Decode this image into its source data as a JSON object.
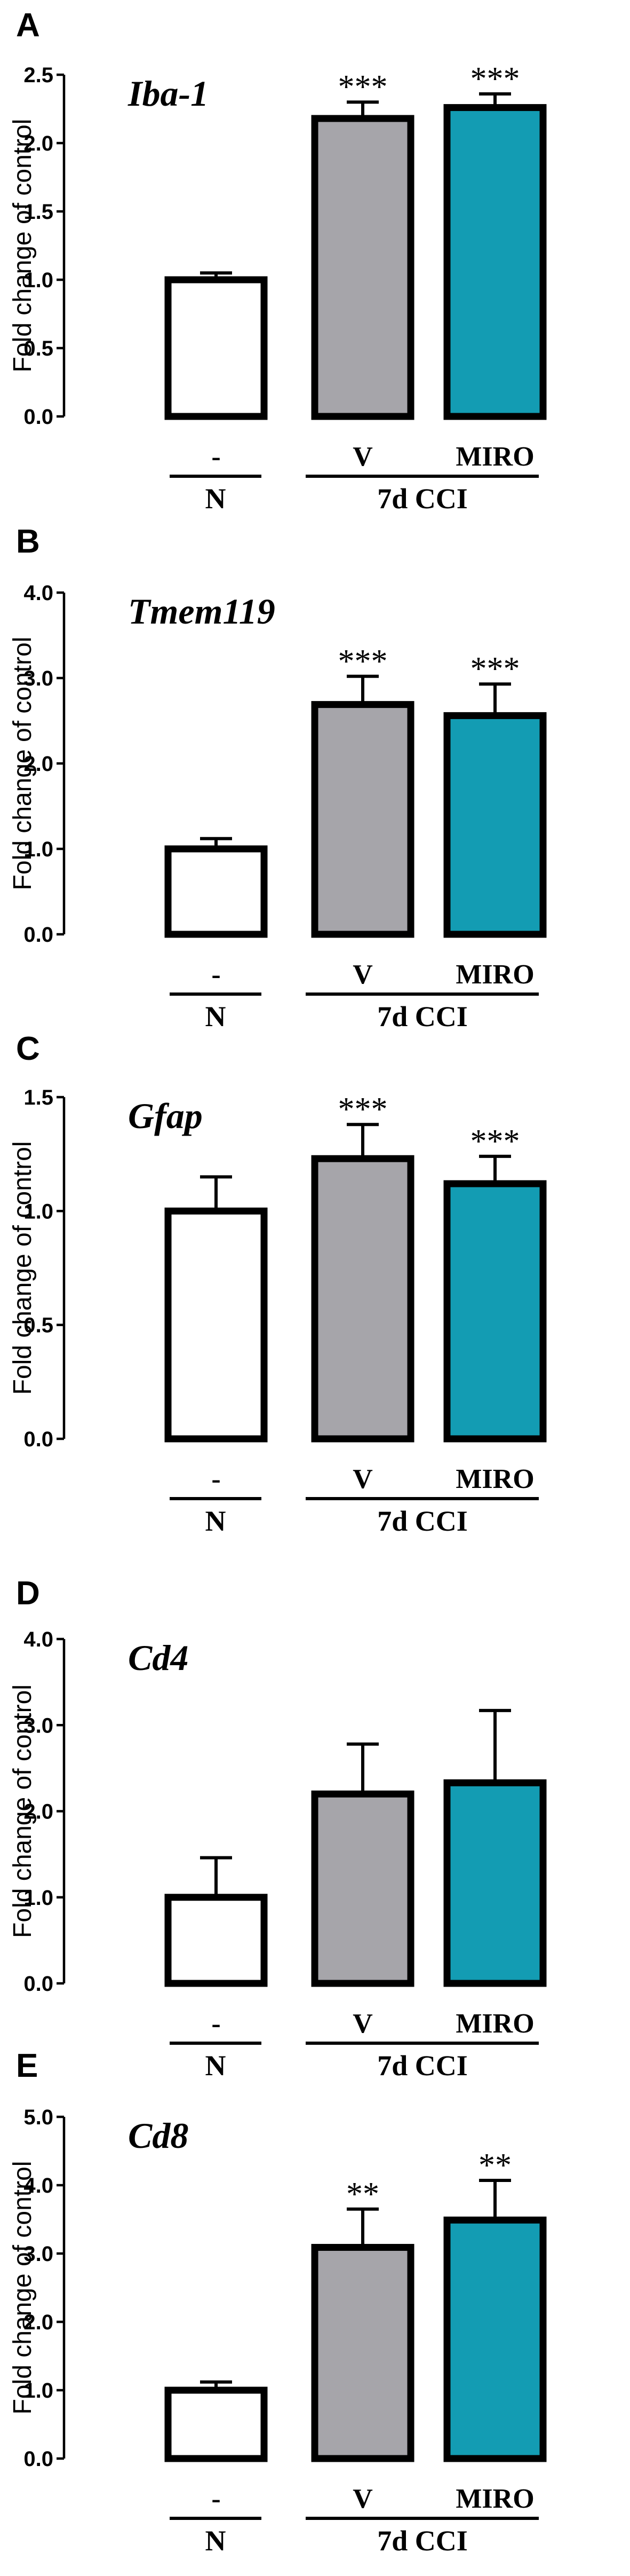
{
  "colors": {
    "N": "#ffffff",
    "V": "#a6a5aa",
    "MIRO": "#139cb3"
  },
  "categories": [
    "-",
    "V",
    "MIRO"
  ],
  "groups": [
    {
      "label": "N",
      "members": [
        "-"
      ]
    },
    {
      "label": "7d CCI",
      "members": [
        "V",
        "MIRO"
      ]
    }
  ],
  "chart_data": [
    {
      "panel": "A",
      "type": "bar",
      "title": "Iba-1",
      "ylabel": "Fold change of control",
      "categories": [
        "-",
        "V",
        "MIRO"
      ],
      "values": [
        1.0,
        2.18,
        2.26
      ],
      "errors": [
        0.05,
        0.12,
        0.1
      ],
      "significance": [
        "",
        "***",
        "***"
      ],
      "ylim": [
        0,
        2.5
      ],
      "yticks": [
        "0.0",
        "0.5",
        "1.0",
        "1.5",
        "2.0",
        "2.5"
      ]
    },
    {
      "panel": "B",
      "type": "bar",
      "title": "Tmem119",
      "ylabel": "Fold change of control",
      "categories": [
        "-",
        "V",
        "MIRO"
      ],
      "values": [
        1.0,
        2.69,
        2.56
      ],
      "errors": [
        0.12,
        0.33,
        0.37
      ],
      "significance": [
        "",
        "***",
        "***"
      ],
      "ylim": [
        0,
        4.0
      ],
      "yticks": [
        "0.0",
        "1.0",
        "2.0",
        "3.0",
        "4.0"
      ]
    },
    {
      "panel": "C",
      "type": "bar",
      "title": "Gfap",
      "ylabel": "Fold change of control",
      "categories": [
        "-",
        "V",
        "MIRO"
      ],
      "values": [
        1.0,
        1.23,
        1.12
      ],
      "errors": [
        0.15,
        0.15,
        0.12
      ],
      "significance": [
        "",
        "***",
        "***"
      ],
      "ylim": [
        0,
        1.5
      ],
      "yticks": [
        "0.0",
        "0.5",
        "1.0",
        "1.5"
      ]
    },
    {
      "panel": "D",
      "type": "bar",
      "title": "Cd4",
      "ylabel": "Fold change of control",
      "categories": [
        "-",
        "V",
        "MIRO"
      ],
      "values": [
        1.0,
        2.2,
        2.33
      ],
      "errors": [
        0.46,
        0.58,
        0.84
      ],
      "significance": [
        "",
        "",
        ""
      ],
      "ylim": [
        0,
        4.0
      ],
      "yticks": [
        "0.0",
        "1.0",
        "2.0",
        "3.0",
        "4.0"
      ]
    },
    {
      "panel": "E",
      "type": "bar",
      "title": "Cd8",
      "ylabel": "Fold change of control",
      "categories": [
        "-",
        "V",
        "MIRO"
      ],
      "values": [
        1.0,
        3.09,
        3.49
      ],
      "errors": [
        0.12,
        0.56,
        0.58
      ],
      "significance": [
        "",
        "**",
        "**"
      ],
      "ylim": [
        0,
        5.0
      ],
      "yticks": [
        "0.0",
        "1.0",
        "2.0",
        "3.0",
        "4.0",
        "5.0"
      ]
    }
  ]
}
